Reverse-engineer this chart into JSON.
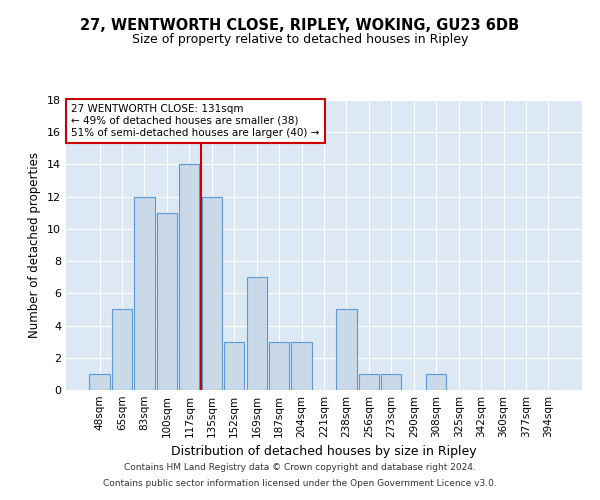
{
  "title1": "27, WENTWORTH CLOSE, RIPLEY, WOKING, GU23 6DB",
  "title2": "Size of property relative to detached houses in Ripley",
  "xlabel": "Distribution of detached houses by size in Ripley",
  "ylabel": "Number of detached properties",
  "footer1": "Contains HM Land Registry data © Crown copyright and database right 2024.",
  "footer2": "Contains public sector information licensed under the Open Government Licence v3.0.",
  "annotation_line1": "27 WENTWORTH CLOSE: 131sqm",
  "annotation_line2": "← 49% of detached houses are smaller (38)",
  "annotation_line3": "51% of semi-detached houses are larger (40) →",
  "bar_labels": [
    "48sqm",
    "65sqm",
    "83sqm",
    "100sqm",
    "117sqm",
    "135sqm",
    "152sqm",
    "169sqm",
    "187sqm",
    "204sqm",
    "221sqm",
    "238sqm",
    "256sqm",
    "273sqm",
    "290sqm",
    "308sqm",
    "325sqm",
    "342sqm",
    "360sqm",
    "377sqm",
    "394sqm"
  ],
  "bar_values": [
    1,
    5,
    12,
    11,
    14,
    12,
    3,
    7,
    3,
    3,
    0,
    5,
    1,
    1,
    0,
    1,
    0,
    0,
    0,
    0,
    0
  ],
  "bar_color": "#c9d9e8",
  "bar_edge_color": "#5b9bd5",
  "reference_line_color": "#cc0000",
  "annotation_box_color": "#cc0000",
  "bg_color": "#dce9f5",
  "ylim": [
    0,
    18
  ],
  "yticks": [
    0,
    2,
    4,
    6,
    8,
    10,
    12,
    14,
    16,
    18
  ],
  "title1_fontsize": 10.5,
  "title2_fontsize": 9,
  "ylabel_fontsize": 8.5,
  "xlabel_fontsize": 9,
  "tick_fontsize": 7.5,
  "footer_fontsize": 6.5
}
